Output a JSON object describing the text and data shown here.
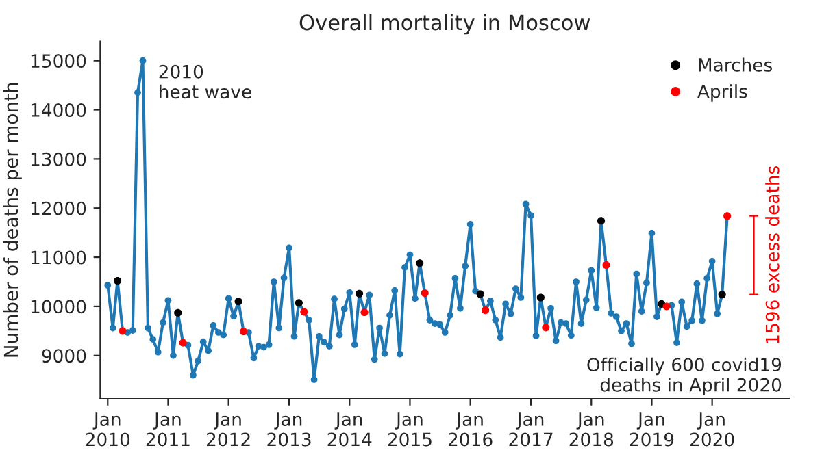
{
  "chart_data": {
    "type": "line",
    "title": "Overall mortality in Moscow",
    "ylabel": "Number of deaths per month",
    "x": [
      "2010-01",
      "2010-02",
      "2010-03",
      "2010-04",
      "2010-05",
      "2010-06",
      "2010-07",
      "2010-08",
      "2010-09",
      "2010-10",
      "2010-11",
      "2010-12",
      "2011-01",
      "2011-02",
      "2011-03",
      "2011-04",
      "2011-05",
      "2011-06",
      "2011-07",
      "2011-08",
      "2011-09",
      "2011-10",
      "2011-11",
      "2011-12",
      "2012-01",
      "2012-02",
      "2012-03",
      "2012-04",
      "2012-05",
      "2012-06",
      "2012-07",
      "2012-08",
      "2012-09",
      "2012-10",
      "2012-11",
      "2012-12",
      "2013-01",
      "2013-02",
      "2013-03",
      "2013-04",
      "2013-05",
      "2013-06",
      "2013-07",
      "2013-08",
      "2013-09",
      "2013-10",
      "2013-11",
      "2013-12",
      "2014-01",
      "2014-02",
      "2014-03",
      "2014-04",
      "2014-05",
      "2014-06",
      "2014-07",
      "2014-08",
      "2014-09",
      "2014-10",
      "2014-11",
      "2014-12",
      "2015-01",
      "2015-02",
      "2015-03",
      "2015-04",
      "2015-05",
      "2015-06",
      "2015-07",
      "2015-08",
      "2015-09",
      "2015-10",
      "2015-11",
      "2015-12",
      "2016-01",
      "2016-02",
      "2016-03",
      "2016-04",
      "2016-05",
      "2016-06",
      "2016-07",
      "2016-08",
      "2016-09",
      "2016-10",
      "2016-11",
      "2016-12",
      "2017-01",
      "2017-02",
      "2017-03",
      "2017-04",
      "2017-05",
      "2017-06",
      "2017-07",
      "2017-08",
      "2017-09",
      "2017-10",
      "2017-11",
      "2017-12",
      "2018-01",
      "2018-02",
      "2018-03",
      "2018-04",
      "2018-05",
      "2018-06",
      "2018-07",
      "2018-08",
      "2018-09",
      "2018-10",
      "2018-11",
      "2018-12",
      "2019-01",
      "2019-02",
      "2019-03",
      "2019-04",
      "2019-05",
      "2019-06",
      "2019-07",
      "2019-08",
      "2019-09",
      "2019-10",
      "2019-11",
      "2019-12",
      "2020-01",
      "2020-02",
      "2020-03",
      "2020-04"
    ],
    "series": [
      {
        "color": "#1f77b4",
        "marker": "circle",
        "line_style": "solid",
        "values": [
          10430,
          9560,
          10520,
          9500,
          9470,
          9510,
          14350,
          15000,
          9560,
          9330,
          9070,
          9670,
          10120,
          9000,
          9870,
          9260,
          9210,
          8600,
          8890,
          9280,
          9100,
          9610,
          9470,
          9420,
          10160,
          9800,
          10100,
          9490,
          9470,
          8950,
          9190,
          9170,
          9220,
          10500,
          9560,
          10580,
          11190,
          9390,
          10070,
          9890,
          9720,
          8510,
          9390,
          9270,
          9190,
          10150,
          9420,
          9950,
          10280,
          9220,
          10260,
          9880,
          10230,
          8920,
          9560,
          9040,
          9820,
          10320,
          9030,
          10790,
          11050,
          10160,
          10880,
          10270,
          9720,
          9650,
          9630,
          9470,
          9820,
          10570,
          9960,
          10820,
          11670,
          10310,
          10250,
          9920,
          10110,
          9720,
          9370,
          10050,
          9850,
          10360,
          10180,
          12080,
          11850,
          9400,
          10180,
          9570,
          9960,
          9300,
          9670,
          9650,
          9410,
          10500,
          9650,
          10130,
          10730,
          9970,
          11740,
          10840,
          9860,
          9790,
          9500,
          9650,
          9240,
          10660,
          9900,
          10480,
          11490,
          9790,
          10050,
          10000,
          10020,
          9260,
          10090,
          9590,
          9710,
          10460,
          9710,
          10570,
          10920,
          9850,
          10240,
          11840
        ]
      },
      {
        "type": "scatter",
        "name": "Marches",
        "color": "#000000",
        "x": [
          "2010-03",
          "2011-03",
          "2012-03",
          "2013-03",
          "2014-03",
          "2015-03",
          "2016-03",
          "2017-03",
          "2018-03",
          "2019-03",
          "2020-03"
        ],
        "values": [
          10520,
          9870,
          10100,
          10070,
          10260,
          10880,
          10250,
          10180,
          11740,
          10050,
          10240
        ]
      },
      {
        "type": "scatter",
        "name": "Aprils",
        "color": "#ff0000",
        "x": [
          "2010-04",
          "2011-04",
          "2012-04",
          "2013-04",
          "2014-04",
          "2015-04",
          "2016-04",
          "2017-04",
          "2018-04",
          "2019-04",
          "2020-04"
        ],
        "values": [
          9500,
          9260,
          9490,
          9890,
          9880,
          10270,
          9920,
          9570,
          10840,
          10000,
          11840
        ]
      }
    ],
    "xlim": [
      "2009-11-17",
      "2021-04-10"
    ],
    "xticks": [
      {
        "value": "2010-01",
        "label": "Jan\n2010"
      },
      {
        "value": "2011-01",
        "label": "Jan\n2011"
      },
      {
        "value": "2012-01",
        "label": "Jan\n2012"
      },
      {
        "value": "2013-01",
        "label": "Jan\n2013"
      },
      {
        "value": "2014-01",
        "label": "Jan\n2014"
      },
      {
        "value": "2015-01",
        "label": "Jan\n2015"
      },
      {
        "value": "2016-01",
        "label": "Jan\n2016"
      },
      {
        "value": "2017-01",
        "label": "Jan\n2017"
      },
      {
        "value": "2018-01",
        "label": "Jan\n2018"
      },
      {
        "value": "2019-01",
        "label": "Jan\n2019"
      },
      {
        "value": "2020-01",
        "label": "Jan\n2020"
      }
    ],
    "ylim": [
      8120,
      15390
    ],
    "yticks": [
      9000,
      10000,
      11000,
      12000,
      13000,
      14000,
      15000
    ],
    "annotations": [
      {
        "text": "2010\nheat wave",
        "x": "2010-08",
        "y": 15000
      },
      "1596 excess deaths",
      "Officially 600 covid19\ndeaths in April 2020"
    ],
    "legend": "top right",
    "grid": false
  }
}
